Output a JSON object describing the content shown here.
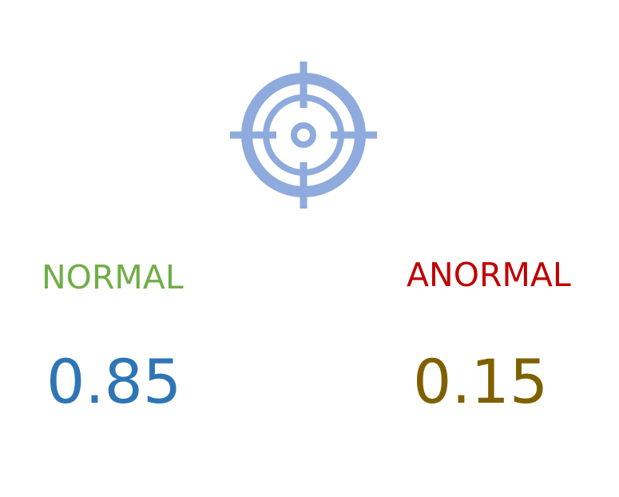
{
  "icon": "target-icon",
  "colors": {
    "icon": "#8faadc",
    "normal_label": "#70ad47",
    "anormal_label": "#c00000",
    "normal_value": "#2e75b6",
    "anormal_value": "#7f6000"
  },
  "normal": {
    "label": "NORMAL",
    "value": "0.85"
  },
  "anormal": {
    "label": "ANORMAL",
    "value": "0.15"
  }
}
